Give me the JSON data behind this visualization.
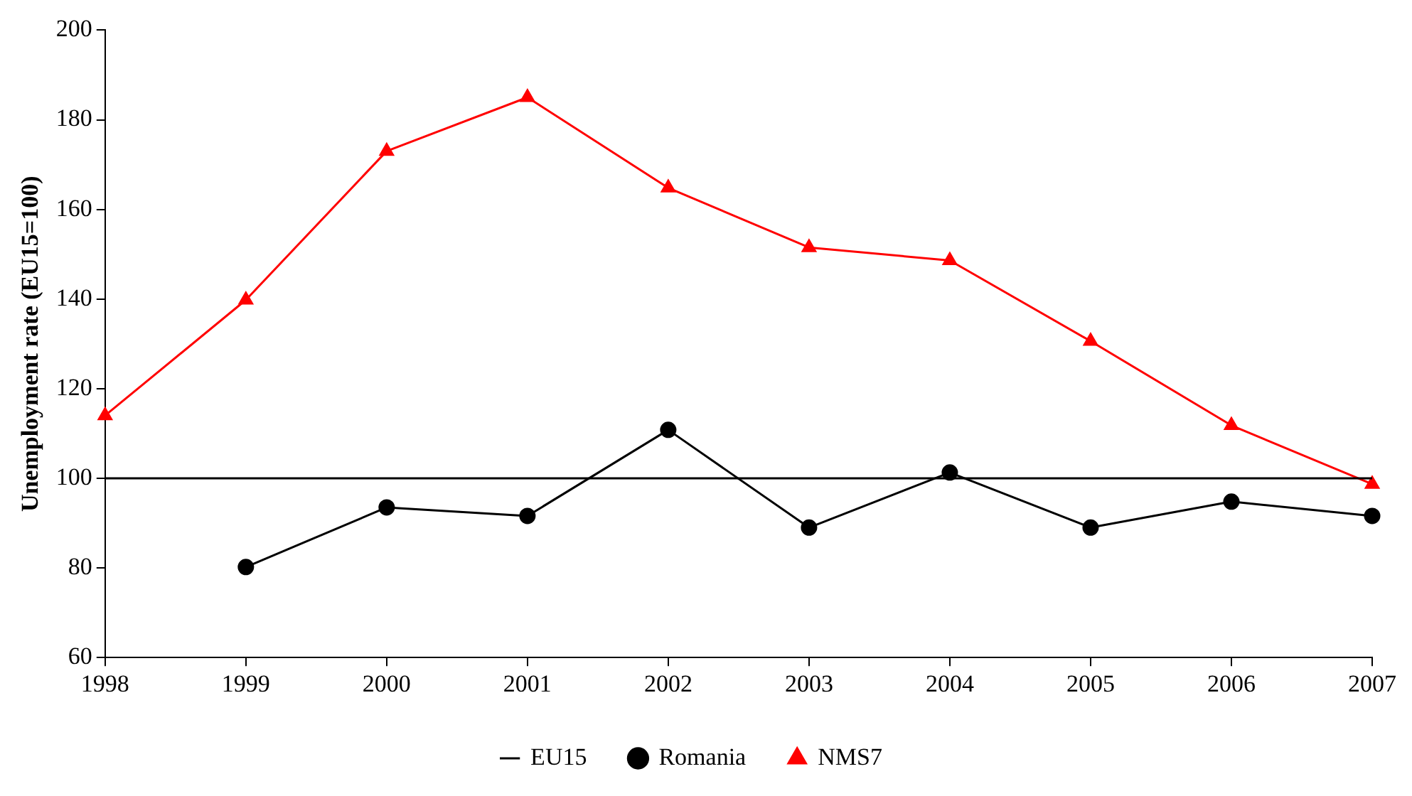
{
  "chart_data": {
    "type": "line",
    "ylabel": "Unemployment rate (EU15=100)",
    "categories": [
      "1998",
      "1999",
      "2000",
      "2001",
      "2002",
      "2003",
      "2004",
      "2005",
      "2006",
      "2007"
    ],
    "series": [
      {
        "name": "EU15",
        "color": "#000000",
        "marker": "none",
        "values": [
          100,
          100,
          100,
          100,
          100,
          100,
          100,
          100,
          100,
          100
        ]
      },
      {
        "name": "Romania",
        "color": "#000000",
        "marker": "circle",
        "values": [
          null,
          80.2,
          93.5,
          91.6,
          110.8,
          89,
          101.3,
          89,
          94.8,
          91.6
        ]
      },
      {
        "name": "NMS7",
        "color": "#ff0000",
        "marker": "triangle",
        "values": [
          114,
          139.8,
          173,
          185,
          164.8,
          151.5,
          148.6,
          130.6,
          111.8,
          98.7
        ]
      }
    ],
    "ylim": [
      60,
      200
    ],
    "yticks": [
      60,
      80,
      100,
      120,
      140,
      160,
      180,
      200
    ],
    "grid": false,
    "legend": "bottom"
  }
}
